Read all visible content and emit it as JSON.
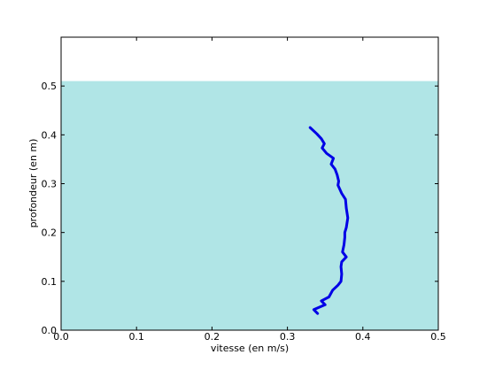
{
  "chart_data": {
    "type": "line",
    "title": "",
    "xlabel": "vitesse (en m/s)",
    "ylabel": "profondeur (en m)",
    "xlim": [
      0.0,
      0.5
    ],
    "ylim": [
      0.0,
      0.6
    ],
    "x_ticks": [
      "0.0",
      "0.1",
      "0.2",
      "0.3",
      "0.4",
      "0.5"
    ],
    "y_ticks": [
      "0.0",
      "0.1",
      "0.2",
      "0.3",
      "0.4",
      "0.5"
    ],
    "grid": false,
    "legend": "none",
    "water_fill": {
      "depth": 0.51,
      "color": "#b0e5e6"
    },
    "series": [
      {
        "color": "#0000e6",
        "points": [
          [
            0.34,
            0.034
          ],
          [
            0.335,
            0.042
          ],
          [
            0.35,
            0.052
          ],
          [
            0.345,
            0.06
          ],
          [
            0.355,
            0.068
          ],
          [
            0.36,
            0.082
          ],
          [
            0.367,
            0.092
          ],
          [
            0.371,
            0.1
          ],
          [
            0.372,
            0.115
          ],
          [
            0.371,
            0.13
          ],
          [
            0.372,
            0.14
          ],
          [
            0.378,
            0.15
          ],
          [
            0.373,
            0.16
          ],
          [
            0.375,
            0.175
          ],
          [
            0.376,
            0.19
          ],
          [
            0.376,
            0.2
          ],
          [
            0.378,
            0.21
          ],
          [
            0.38,
            0.23
          ],
          [
            0.378,
            0.25
          ],
          [
            0.377,
            0.268
          ],
          [
            0.372,
            0.28
          ],
          [
            0.367,
            0.297
          ],
          [
            0.368,
            0.305
          ],
          [
            0.366,
            0.318
          ],
          [
            0.363,
            0.33
          ],
          [
            0.358,
            0.34
          ],
          [
            0.361,
            0.352
          ],
          [
            0.352,
            0.362
          ],
          [
            0.346,
            0.373
          ],
          [
            0.349,
            0.382
          ],
          [
            0.345,
            0.392
          ],
          [
            0.339,
            0.402
          ],
          [
            0.33,
            0.415
          ]
        ]
      }
    ]
  }
}
